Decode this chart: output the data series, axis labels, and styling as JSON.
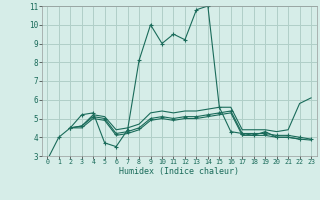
{
  "title": "",
  "xlabel": "Humidex (Indice chaleur)",
  "xlim": [
    -0.5,
    23.5
  ],
  "ylim": [
    3,
    11
  ],
  "yticks": [
    3,
    4,
    5,
    6,
    7,
    8,
    9,
    10,
    11
  ],
  "xticks": [
    0,
    1,
    2,
    3,
    4,
    5,
    6,
    7,
    8,
    9,
    10,
    11,
    12,
    13,
    14,
    15,
    16,
    17,
    18,
    19,
    20,
    21,
    22,
    23
  ],
  "bg_color": "#d6ede8",
  "grid_color": "#b0cfc8",
  "line_color": "#1a6b5a",
  "series": [
    {
      "x": [
        0,
        1,
        2,
        3,
        4,
        5,
        6,
        7,
        8,
        9,
        10,
        11,
        12,
        13,
        14,
        15,
        16,
        17,
        18,
        19,
        20,
        21,
        22
      ],
      "y": [
        2.8,
        4.0,
        4.5,
        5.2,
        5.3,
        3.7,
        3.5,
        4.4,
        8.1,
        10.0,
        9.0,
        9.5,
        9.2,
        10.8,
        11.0,
        5.6,
        4.3,
        4.2,
        4.1,
        4.3,
        4.0,
        4.0,
        3.9
      ],
      "marker": "+"
    },
    {
      "x": [
        2,
        3,
        4,
        5,
        6,
        7,
        8,
        9,
        10,
        11,
        12,
        13,
        14,
        15,
        16,
        17,
        18,
        19,
        20,
        21,
        22,
        23
      ],
      "y": [
        4.5,
        4.6,
        5.2,
        5.1,
        4.4,
        4.5,
        4.7,
        5.3,
        5.4,
        5.3,
        5.4,
        5.4,
        5.5,
        5.6,
        5.6,
        4.4,
        4.4,
        4.4,
        4.3,
        4.4,
        5.8,
        6.1
      ],
      "marker": null
    },
    {
      "x": [
        2,
        3,
        4,
        5,
        6,
        7,
        8,
        9,
        10,
        11,
        12,
        13,
        14,
        15,
        16,
        17,
        18,
        19,
        20,
        21,
        22,
        23
      ],
      "y": [
        4.5,
        4.6,
        5.1,
        5.0,
        4.2,
        4.3,
        4.5,
        5.0,
        5.1,
        5.0,
        5.1,
        5.1,
        5.2,
        5.3,
        5.4,
        4.2,
        4.2,
        4.2,
        4.1,
        4.1,
        4.0,
        3.9
      ],
      "marker": "+"
    },
    {
      "x": [
        2,
        3,
        4,
        5,
        6,
        7,
        8,
        9,
        10,
        11,
        12,
        13,
        14,
        15,
        16,
        17,
        18,
        19,
        20,
        21,
        22,
        23
      ],
      "y": [
        4.5,
        4.5,
        5.0,
        4.9,
        4.1,
        4.2,
        4.4,
        4.9,
        5.0,
        4.9,
        5.0,
        5.0,
        5.1,
        5.2,
        5.3,
        4.1,
        4.1,
        4.1,
        4.0,
        4.0,
        3.9,
        3.85
      ],
      "marker": null
    }
  ]
}
